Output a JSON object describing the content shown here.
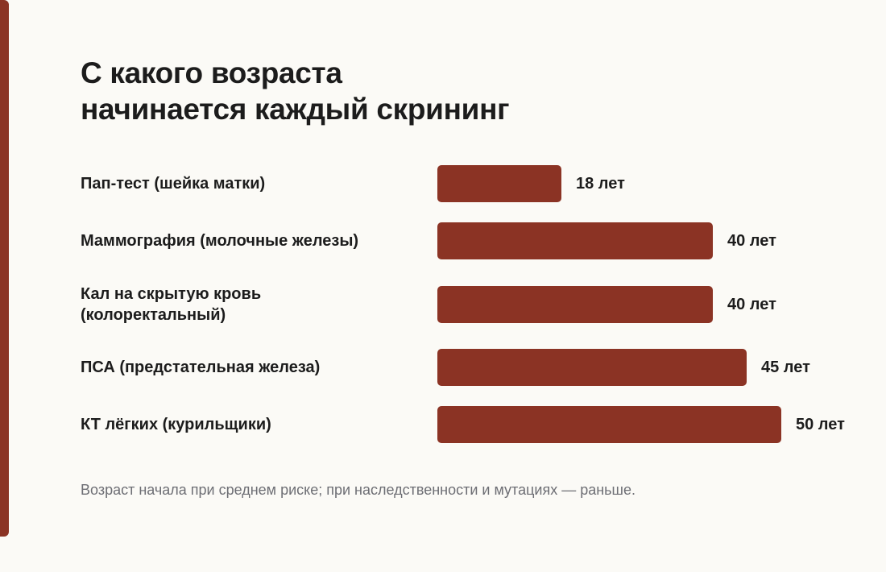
{
  "colors": {
    "accent": "#8b3324",
    "bar": "#8b3324",
    "text": "#1c1c1c",
    "muted": "#6d6e74",
    "background": "#fbfaf6"
  },
  "title_lines": [
    "С какого возраста",
    "начинается каждый скрининг"
  ],
  "footnote": "Возраст начала при среднем риске; при наследственности и мутациях — раньше.",
  "chart_data": {
    "type": "bar",
    "orientation": "horizontal",
    "title": "С какого возраста начинается каждый скрининг",
    "categories": [
      [
        "Пап-тест (шейка матки)"
      ],
      [
        "Маммография (молочные железы)"
      ],
      [
        "Кал на скрытую кровь",
        "(колоректальный)"
      ],
      [
        "ПСА (предстательная железа)"
      ],
      [
        "КТ лёгких (курильщики)"
      ]
    ],
    "values": [
      18,
      40,
      40,
      45,
      50
    ],
    "value_labels": [
      "18 лет",
      "40 лет",
      "40 лет",
      "45 лет",
      "50 лет"
    ],
    "xlim": [
      0,
      50
    ],
    "grid": false,
    "legend": "none"
  }
}
